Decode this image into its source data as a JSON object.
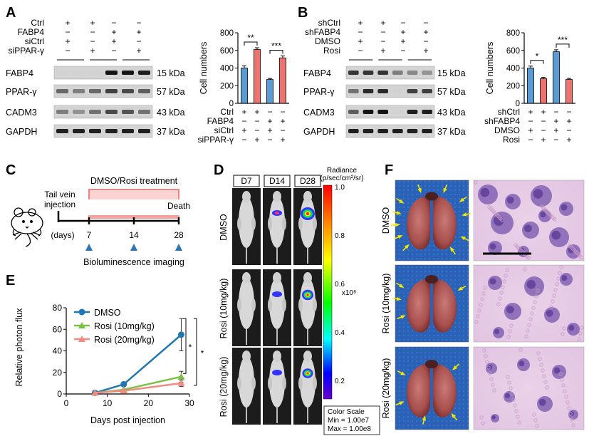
{
  "panels": {
    "A": {
      "letter": "A",
      "conditions": [
        "Ctrl",
        "FABP4",
        "siCtrl",
        "siPPAR-γ"
      ],
      "signs": [
        [
          "+",
          "+",
          "−",
          "−"
        ],
        [
          "−",
          "−",
          "+",
          "+"
        ],
        [
          "+",
          "−",
          "+",
          "−"
        ],
        [
          "−",
          "+",
          "−",
          "+"
        ]
      ],
      "blots": [
        {
          "name": "FABP4",
          "kda": "15 kDa"
        },
        {
          "name": "PPAR-γ",
          "kda": "57 kDa"
        },
        {
          "name": "CADM3",
          "kda": "43 kDa"
        },
        {
          "name": "GAPDH",
          "kda": "37 kDa"
        }
      ],
      "sig": [
        "**",
        "***"
      ]
    },
    "B": {
      "letter": "B",
      "conditions": [
        "shCtrl",
        "shFABP4",
        "DMSO",
        "Rosi"
      ],
      "signs": [
        [
          "+",
          "+",
          "−",
          "−"
        ],
        [
          "−",
          "−",
          "+",
          "+"
        ],
        [
          "+",
          "−",
          "+",
          "−"
        ],
        [
          "−",
          "+",
          "−",
          "+"
        ]
      ],
      "blots": [
        {
          "name": "FABP4",
          "kda": "15 kDa"
        },
        {
          "name": "PPAR-γ",
          "kda": "57 kDa"
        },
        {
          "name": "CADM3",
          "kda": "43 kDa"
        },
        {
          "name": "GAPDH",
          "kda": "37 kDa"
        }
      ],
      "sig": [
        "*",
        "***"
      ]
    },
    "C": {
      "letter": "C",
      "treatment": "DMSO/Rosi treatment",
      "injection": [
        "Tail vein",
        "injection"
      ],
      "death": "Death",
      "days_label": "(days)",
      "days": [
        "7",
        "14",
        "28"
      ],
      "imaging": "Bioluminescence imaging"
    },
    "D": {
      "letter": "D",
      "timepoints": [
        "D7",
        "D14",
        "D28"
      ],
      "rows": [
        "DMSO",
        "Rosi (10mg/kg)",
        "Rosi (20mg/kg)"
      ],
      "radiance_title": [
        "Radiance",
        "(p/sec/cm²/sr)"
      ],
      "scale_ticks": [
        "1.0",
        "0.8",
        "0.6",
        "0.4",
        "0.2"
      ],
      "scale_unit": "x10⁸",
      "color_scale": [
        "Color Scale",
        "Min = 1.00e7",
        "Max = 1.00e8"
      ],
      "colors": [
        "#ff0000",
        "#ff8800",
        "#ffff00",
        "#00ff00",
        "#00ffff",
        "#0000ff",
        "#6600cc"
      ]
    },
    "E": {
      "letter": "E",
      "sig": [
        "*",
        "*"
      ]
    },
    "F": {
      "letter": "F",
      "rows": [
        "DMSO",
        "Rosi (10mg/kg)",
        "Rosi (20mg/kg)"
      ]
    }
  },
  "chart_data": [
    {
      "type": "bar",
      "panel": "A",
      "ylabel": "Cell numbers",
      "ylim": [
        0,
        800
      ],
      "yticks": [
        0,
        200,
        400,
        600,
        800
      ],
      "values": [
        400,
        610,
        270,
        515
      ],
      "errors": [
        25,
        20,
        12,
        22
      ],
      "colors": [
        "#5b9bd5",
        "#f0726f",
        "#5b9bd5",
        "#f0726f"
      ],
      "rows": [
        "Ctrl",
        "FABP4",
        "siCtrl",
        "siPPAR-γ"
      ],
      "signs": [
        [
          "+",
          "+",
          "−",
          "−"
        ],
        [
          "−",
          "−",
          "+",
          "+"
        ],
        [
          "+",
          "−",
          "+",
          "−"
        ],
        [
          "−",
          "+",
          "−",
          "+"
        ]
      ]
    },
    {
      "type": "bar",
      "panel": "B",
      "ylabel": "Cell numbers",
      "ylim": [
        0,
        800
      ],
      "yticks": [
        0,
        200,
        400,
        600,
        800
      ],
      "values": [
        400,
        280,
        585,
        270
      ],
      "errors": [
        22,
        15,
        22,
        12
      ],
      "colors": [
        "#5b9bd5",
        "#f0726f",
        "#5b9bd5",
        "#f0726f"
      ],
      "rows": [
        "shCtrl",
        "shFABP4",
        "DMSO",
        "Rosi"
      ],
      "signs": [
        [
          "+",
          "+",
          "−",
          "−"
        ],
        [
          "−",
          "−",
          "+",
          "+"
        ],
        [
          "+",
          "−",
          "+",
          "−"
        ],
        [
          "−",
          "+",
          "−",
          "+"
        ]
      ]
    },
    {
      "type": "line",
      "panel": "E",
      "xlabel": "Days post injection",
      "ylabel": "Relative photon flux",
      "xlim": [
        0,
        30
      ],
      "ylim": [
        0,
        80
      ],
      "xticks": [
        0,
        10,
        20,
        30
      ],
      "yticks": [
        0,
        20,
        40,
        60,
        80
      ],
      "x": [
        7,
        14,
        28
      ],
      "series": [
        {
          "name": "DMSO",
          "values": [
            1,
            9,
            55
          ],
          "errors": [
            0.5,
            2,
            15
          ],
          "color": "#1f77b4",
          "marker": "circle"
        },
        {
          "name": "Rosi (10mg/kg)",
          "values": [
            1,
            4,
            16
          ],
          "errors": [
            0.5,
            1,
            5
          ],
          "color": "#7bc142",
          "marker": "triangle"
        },
        {
          "name": "Rosi (20mg/kg)",
          "values": [
            1,
            3,
            10
          ],
          "errors": [
            0.5,
            1,
            3
          ],
          "color": "#f28b82",
          "marker": "triangle"
        }
      ]
    }
  ]
}
